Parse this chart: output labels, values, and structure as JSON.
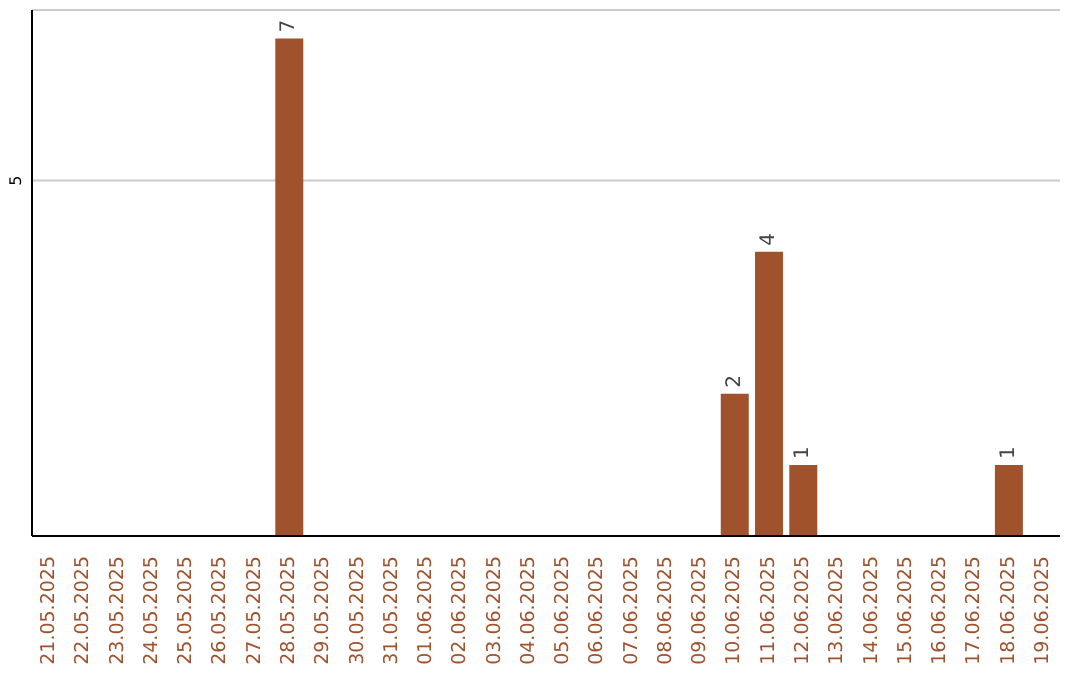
{
  "chart_data": {
    "type": "bar",
    "categories": [
      "21.05.2025",
      "22.05.2025",
      "23.05.2025",
      "24.05.2025",
      "25.05.2025",
      "26.05.2025",
      "27.05.2025",
      "28.05.2025",
      "29.05.2025",
      "30.05.2025",
      "31.05.2025",
      "01.06.2025",
      "02.06.2025",
      "03.06.2025",
      "04.06.2025",
      "05.06.2025",
      "06.06.2025",
      "07.06.2025",
      "08.06.2025",
      "09.06.2025",
      "10.06.2025",
      "11.06.2025",
      "12.06.2025",
      "13.06.2025",
      "14.06.2025",
      "15.06.2025",
      "16.06.2025",
      "17.06.2025",
      "18.06.2025",
      "19.06.2025"
    ],
    "values": [
      null,
      null,
      null,
      null,
      null,
      null,
      null,
      7,
      null,
      null,
      null,
      null,
      null,
      null,
      null,
      null,
      null,
      null,
      null,
      null,
      2,
      4,
      1,
      null,
      null,
      null,
      null,
      null,
      1,
      null
    ],
    "color": "#a0522d",
    "ylim": [
      0,
      7.4
    ],
    "yticks": [
      5
    ],
    "grid": "y",
    "data_labels": true
  }
}
